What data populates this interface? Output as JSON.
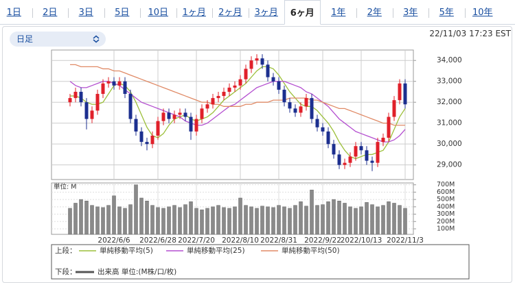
{
  "tabs": [
    "1日",
    "2日",
    "3日",
    "5日",
    "10日",
    "1ヶ月",
    "2ヶ月",
    "3ヶ月",
    "6ヶ月",
    "1年",
    "2年",
    "3年",
    "5年",
    "10年"
  ],
  "active_tab": 8,
  "interval": "日足",
  "timestamp": "22/11/03 17:23 EST",
  "chart_data": [
    {
      "type": "candlestick",
      "up_color": "#e0202a",
      "down_color": "#1c2f8f",
      "ylim": [
        28300,
        34500
      ],
      "yticks": [
        {
          "value": 29000,
          "label": "29,000"
        },
        {
          "value": 30000,
          "label": "30,000"
        },
        {
          "value": 31000,
          "label": "31,000"
        },
        {
          "value": 32000,
          "label": "32,000"
        },
        {
          "value": 33000,
          "label": "33,000"
        },
        {
          "value": 34000,
          "label": "34,000"
        }
      ],
      "grid": true,
      "open": [
        32000,
        32200,
        32500,
        32000,
        31200,
        31600,
        32400,
        32900,
        33000,
        32800,
        33000,
        32400,
        31200,
        30600,
        30100,
        30000,
        30400,
        31100,
        31500,
        31200,
        31400,
        31500,
        31300,
        30600,
        31200,
        31700,
        31900,
        32200,
        32300,
        32500,
        32700,
        32800,
        33100,
        33600,
        34000,
        34100,
        33800,
        33200,
        33000,
        32600,
        32000,
        31700,
        31500,
        31800,
        32200,
        31200,
        30800,
        30600,
        30000,
        29500,
        29000,
        29100,
        29400,
        29900,
        29700,
        29200,
        29100,
        30100,
        30300,
        31300,
        32100,
        32900
      ],
      "high": [
        32400,
        32700,
        32700,
        32200,
        31800,
        32600,
        33100,
        33200,
        33200,
        33200,
        33200,
        32600,
        31400,
        30800,
        30300,
        30600,
        31300,
        31700,
        31700,
        31600,
        31700,
        31700,
        31500,
        31400,
        31900,
        32100,
        32400,
        32500,
        32700,
        32900,
        33000,
        33300,
        33800,
        34200,
        34300,
        34300,
        34000,
        33400,
        33200,
        32800,
        32200,
        31900,
        32000,
        32400,
        32400,
        31400,
        31000,
        30800,
        30200,
        29700,
        29300,
        29600,
        30100,
        30100,
        29900,
        29400,
        30300,
        30500,
        31500,
        32300,
        33100,
        33100
      ],
      "low": [
        31800,
        32000,
        31800,
        30700,
        31000,
        31400,
        32200,
        32700,
        32600,
        32600,
        32200,
        31000,
        30400,
        29900,
        29700,
        29800,
        30200,
        30900,
        31000,
        31000,
        31200,
        31100,
        30200,
        30400,
        31000,
        31500,
        31700,
        32000,
        32100,
        32300,
        32500,
        32600,
        32900,
        33400,
        33800,
        33600,
        33000,
        32800,
        32400,
        31800,
        31500,
        31300,
        31300,
        31600,
        31000,
        30600,
        30400,
        29800,
        29300,
        28800,
        28800,
        28900,
        29200,
        29500,
        29000,
        28700,
        28900,
        29900,
        30100,
        31100,
        31900,
        31700
      ],
      "close": [
        32200,
        32500,
        32000,
        31200,
        31600,
        32400,
        32900,
        33000,
        32800,
        33000,
        32400,
        31200,
        30600,
        30100,
        30000,
        30400,
        31100,
        31500,
        31200,
        31400,
        31500,
        31300,
        30600,
        31200,
        31700,
        31900,
        32200,
        32300,
        32500,
        32700,
        32800,
        33100,
        33600,
        34000,
        34100,
        33800,
        33200,
        33000,
        32600,
        32000,
        31700,
        31500,
        31800,
        32200,
        31200,
        30800,
        30600,
        30000,
        29500,
        29000,
        29100,
        29400,
        29900,
        29700,
        29200,
        29100,
        30100,
        30300,
        31300,
        32100,
        32900,
        31900
      ],
      "series": [
        {
          "name": "単純移動平均(5)",
          "color": "#9cbf3a",
          "values": [
            32300,
            32300,
            32200,
            32000,
            31900,
            31900,
            32000,
            32400,
            32800,
            32900,
            32800,
            32500,
            32000,
            31400,
            30800,
            30400,
            30300,
            30500,
            30900,
            31200,
            31300,
            31400,
            31200,
            31100,
            31200,
            31300,
            31500,
            31800,
            32100,
            32300,
            32500,
            32700,
            32900,
            33200,
            33500,
            33700,
            33700,
            33600,
            33300,
            32900,
            32500,
            32200,
            31900,
            31800,
            31800,
            31600,
            31300,
            31000,
            30600,
            30100,
            29700,
            29400,
            29300,
            29400,
            29500,
            29500,
            29600,
            29700,
            30100,
            30700,
            31300,
            31700
          ]
        },
        {
          "name": "単純移動平均(25)",
          "color": "#b44fd0",
          "values": [
            33000,
            32800,
            32700,
            32700,
            32800,
            32900,
            33000,
            33000,
            32900,
            32800,
            32600,
            32400,
            32200,
            32000,
            31900,
            31800,
            31700,
            31600,
            31500,
            31400,
            31300,
            31100,
            31000,
            30900,
            30900,
            31000,
            31200,
            31400,
            31600,
            31800,
            31900,
            32100,
            32300,
            32500,
            32700,
            32800,
            32900,
            33000,
            33000,
            33000,
            32900,
            32800,
            32700,
            32500,
            32400,
            32200,
            32000,
            31800,
            31500,
            31200,
            31000,
            30800,
            30600,
            30500,
            30400,
            30300,
            30200,
            30100,
            30100,
            30200,
            30400,
            30700
          ]
        },
        {
          "name": "単純移動平均(50)",
          "color": "#e08a66",
          "values": [
            33800,
            33800,
            33700,
            33700,
            33700,
            33700,
            33600,
            33600,
            33500,
            33500,
            33400,
            33300,
            33200,
            33100,
            33000,
            32900,
            32800,
            32700,
            32600,
            32500,
            32400,
            32300,
            32200,
            32100,
            32000,
            32000,
            31900,
            31900,
            31800,
            31800,
            31800,
            31800,
            31900,
            31900,
            32000,
            32000,
            32000,
            32100,
            32100,
            32100,
            32200,
            32200,
            32200,
            32200,
            32100,
            32100,
            32000,
            31900,
            31800,
            31700,
            31700,
            31600,
            31500,
            31400,
            31300,
            31200,
            31100,
            31000,
            31000,
            30900,
            30900,
            30900
          ]
        }
      ]
    },
    {
      "type": "bar",
      "name": "出来高 単位:(M株/口/枚)",
      "ylabel": "単位: M",
      "color": "#8a8a8a",
      "ylim": [
        25,
        725
      ],
      "yticks": [
        {
          "value": 100,
          "label": "100M"
        },
        {
          "value": 200,
          "label": "200M"
        },
        {
          "value": 300,
          "label": "300M"
        },
        {
          "value": 400,
          "label": "400M"
        },
        {
          "value": 500,
          "label": "500M"
        },
        {
          "value": 600,
          "label": "600M"
        },
        {
          "value": 700,
          "label": "700M"
        }
      ],
      "categories": [
        null,
        null,
        null,
        null,
        null,
        null,
        null,
        null,
        "2022/6/6",
        null,
        null,
        null,
        null,
        null,
        null,
        null,
        "2022/6/28",
        null,
        null,
        null,
        null,
        null,
        null,
        "2022/7/20",
        null,
        null,
        null,
        null,
        null,
        null,
        null,
        "2022/8/10",
        null,
        null,
        null,
        null,
        null,
        null,
        "2022/8/31",
        null,
        null,
        null,
        null,
        null,
        null,
        null,
        "2022/9/22",
        null,
        null,
        null,
        null,
        null,
        null,
        "2022/10/13",
        null,
        null,
        null,
        null,
        null,
        null,
        null,
        "2022/11/3"
      ],
      "values": [
        380,
        450,
        500,
        480,
        420,
        400,
        390,
        420,
        550,
        400,
        380,
        430,
        700,
        520,
        480,
        420,
        390,
        380,
        400,
        420,
        390,
        430,
        470,
        380,
        360,
        380,
        400,
        420,
        390,
        380,
        400,
        520,
        420,
        400,
        380,
        410,
        400,
        390,
        420,
        400,
        380,
        420,
        470,
        410,
        630,
        420,
        430,
        470,
        500,
        480,
        450,
        400,
        380,
        400,
        460,
        430,
        400,
        420,
        470,
        450,
        420,
        380
      ]
    }
  ],
  "legend": {
    "upper": "上段：",
    "lower": "下段："
  }
}
